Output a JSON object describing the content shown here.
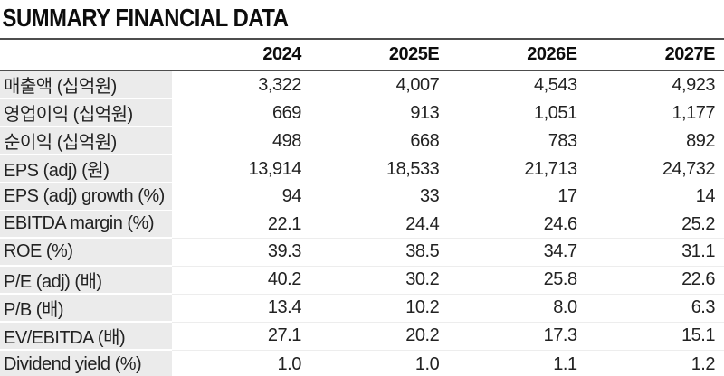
{
  "title": "SUMMARY FINANCIAL DATA",
  "table": {
    "columns": [
      "2024",
      "2025E",
      "2026E",
      "2027E"
    ],
    "rows": [
      {
        "label": "매출액 (십억원)",
        "values": [
          "3,322",
          "4,007",
          "4,543",
          "4,923"
        ]
      },
      {
        "label": "영업이익 (십억원)",
        "values": [
          "669",
          "913",
          "1,051",
          "1,177"
        ]
      },
      {
        "label": "순이익 (십억원)",
        "values": [
          "498",
          "668",
          "783",
          "892"
        ]
      },
      {
        "label": "EPS (adj) (원)",
        "values": [
          "13,914",
          "18,533",
          "21,713",
          "24,732"
        ]
      },
      {
        "label": "EPS (adj) growth (%)",
        "values": [
          "94",
          "33",
          "17",
          "14"
        ]
      },
      {
        "label": "EBITDA margin (%)",
        "values": [
          "22.1",
          "24.4",
          "24.6",
          "25.2"
        ]
      },
      {
        "label": "ROE (%)",
        "values": [
          "39.3",
          "38.5",
          "34.7",
          "31.1"
        ]
      },
      {
        "label": "P/E (adj) (배)",
        "values": [
          "40.2",
          "30.2",
          "25.8",
          "22.6"
        ]
      },
      {
        "label": "P/B (배)",
        "values": [
          "13.4",
          "10.2",
          "8.0",
          "6.3"
        ]
      },
      {
        "label": "EV/EBITDA (배)",
        "values": [
          "27.1",
          "20.2",
          "17.3",
          "15.1"
        ]
      },
      {
        "label": "Dividend yield (%)",
        "values": [
          "1.0",
          "1.0",
          "1.1",
          "1.2"
        ]
      }
    ]
  },
  "colors": {
    "label_cell_background": "#ebebeb",
    "rule_line": "#4d4d4d",
    "row_separator": "#ededed",
    "text": "#1f1f1f"
  }
}
